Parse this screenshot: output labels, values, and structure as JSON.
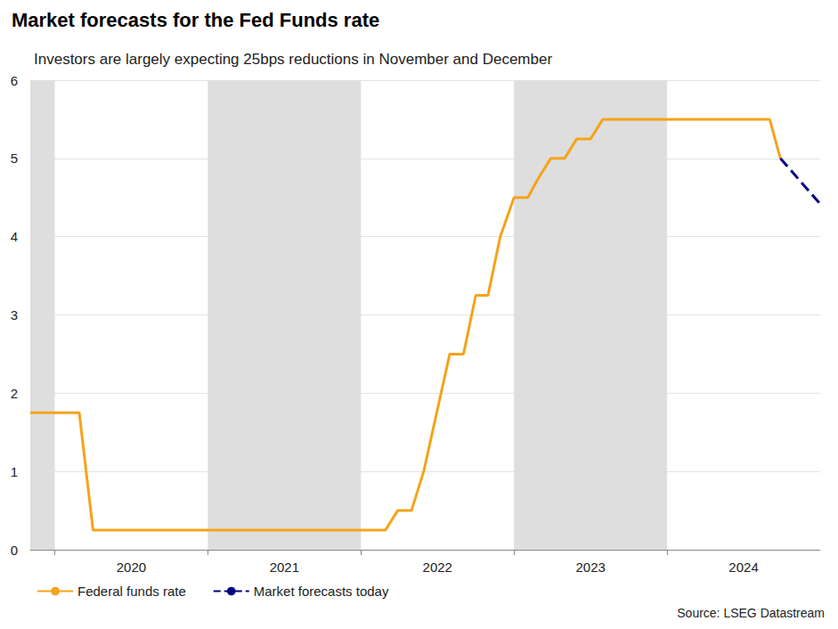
{
  "chart_data": {
    "type": "line",
    "title": "Market forecasts for the Fed Funds rate",
    "subtitle": "Investors are largely expecting 25bps reductions in November and December",
    "source": "Source: LSEG Datastream",
    "xlim": [
      2019.84,
      2025.0
    ],
    "xticks": [
      {
        "value": 2020.5,
        "label": "2020"
      },
      {
        "value": 2021.5,
        "label": "2021"
      },
      {
        "value": 2022.5,
        "label": "2022"
      },
      {
        "value": 2023.5,
        "label": "2023"
      },
      {
        "value": 2024.5,
        "label": "2024"
      }
    ],
    "ylim": [
      0,
      6
    ],
    "yticks": [
      0,
      1,
      2,
      3,
      4,
      5,
      6
    ],
    "grid": true,
    "legend": "bottom",
    "shaded_bands": [
      [
        2019.84,
        2020.0
      ],
      [
        2021.0,
        2022.0
      ],
      [
        2023.0,
        2024.0
      ]
    ],
    "series": [
      {
        "name": "Federal funds rate",
        "color": "#f5a31a",
        "line_style": "solid",
        "x": [
          2019.84,
          2020.16,
          2020.25,
          2022.16,
          2022.24,
          2022.33,
          2022.41,
          2022.58,
          2022.67,
          2022.75,
          2022.83,
          2022.91,
          2023.0,
          2023.09,
          2023.16,
          2023.24,
          2023.33,
          2023.41,
          2023.5,
          2023.58,
          2024.67,
          2024.74
        ],
        "values": [
          1.75,
          1.75,
          0.25,
          0.25,
          0.5,
          0.5,
          1.0,
          2.5,
          2.5,
          3.25,
          3.25,
          4.0,
          4.5,
          4.5,
          4.75,
          5.0,
          5.0,
          5.25,
          5.25,
          5.5,
          5.5,
          5.0
        ]
      },
      {
        "name": "Market forecasts today",
        "color": "#00007f",
        "line_style": "dashed",
        "x": [
          2024.74,
          2025.0
        ],
        "values": [
          5.0,
          4.42
        ]
      }
    ]
  }
}
